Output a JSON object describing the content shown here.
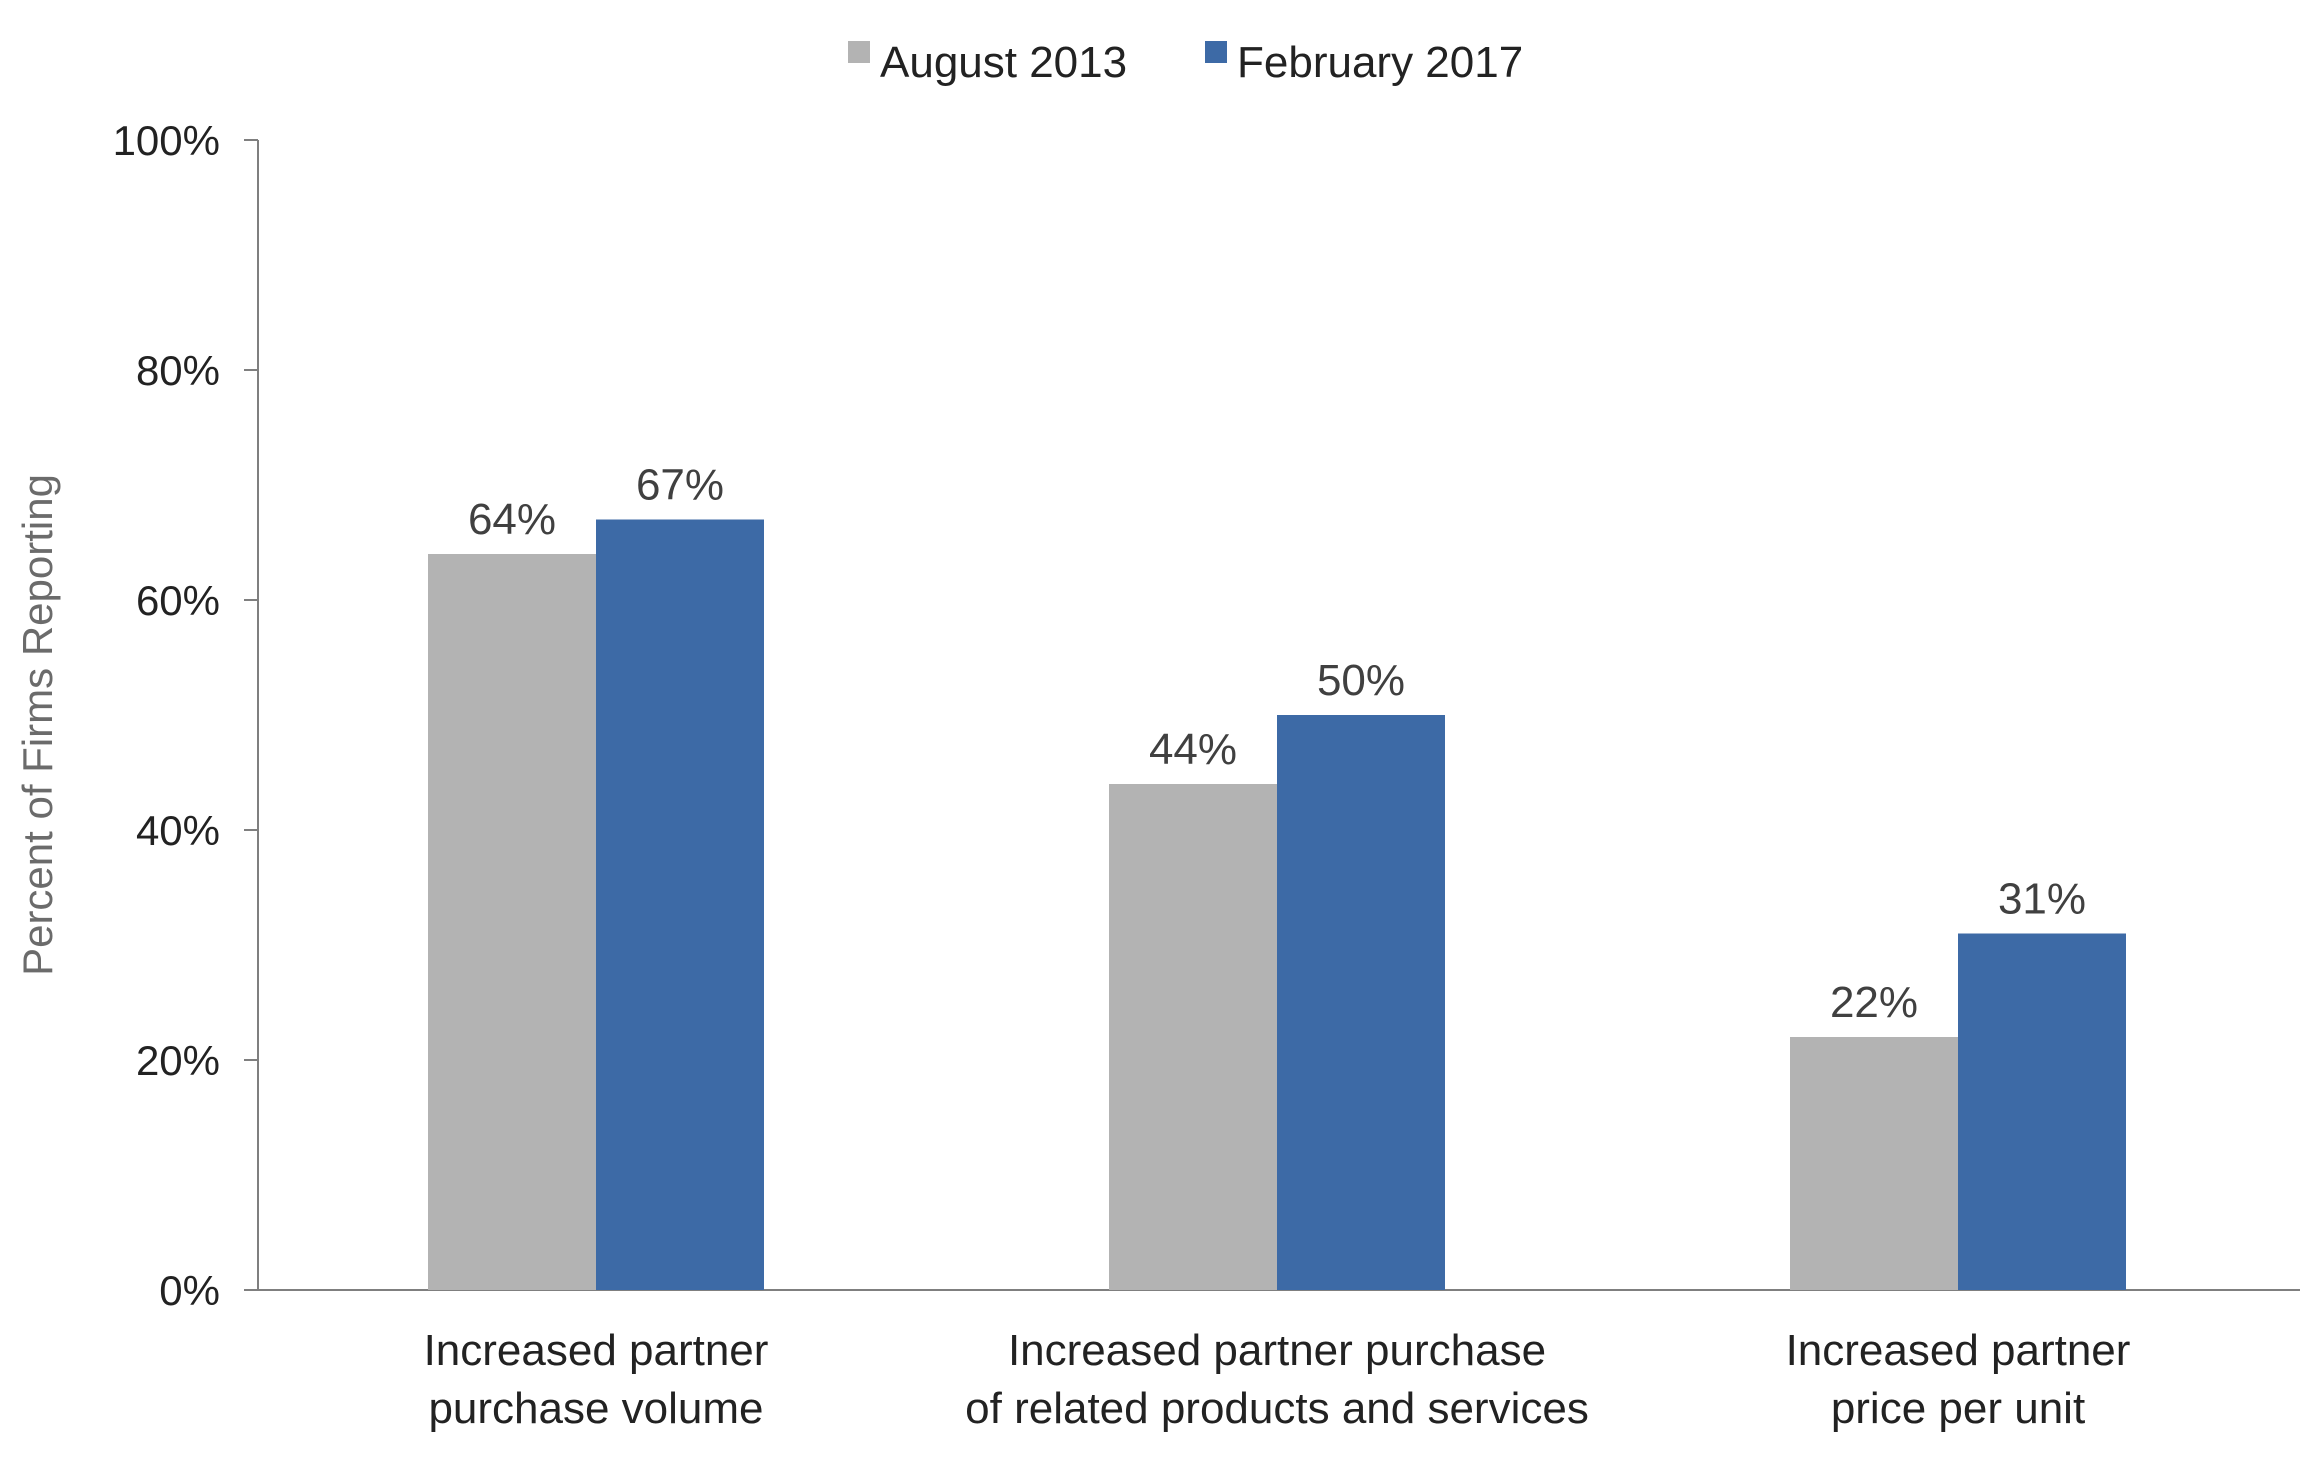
{
  "chart_data": {
    "type": "bar",
    "title": "",
    "xlabel": "",
    "ylabel": "Percent of Firms Reporting",
    "ylim": [
      0,
      100
    ],
    "yticks": [
      0,
      20,
      40,
      60,
      80,
      100
    ],
    "ytick_labels": [
      "0%",
      "20%",
      "40%",
      "60%",
      "80%",
      "100%"
    ],
    "categories": [
      [
        "Increased partner",
        "purchase volume"
      ],
      [
        "Increased partner purchase",
        "of related products and services"
      ],
      [
        "Increased partner",
        "price per unit"
      ]
    ],
    "series": [
      {
        "name": "August 2013",
        "color": "#b3b3b3",
        "values": [
          64,
          44,
          22
        ],
        "labels": [
          "64%",
          "44%",
          "22%"
        ]
      },
      {
        "name": "February 2017",
        "color": "#3d6aa6",
        "values": [
          67,
          50,
          31
        ],
        "labels": [
          "67%",
          "50%",
          "31%"
        ]
      }
    ],
    "legend_position": "top-center",
    "grid": false
  }
}
